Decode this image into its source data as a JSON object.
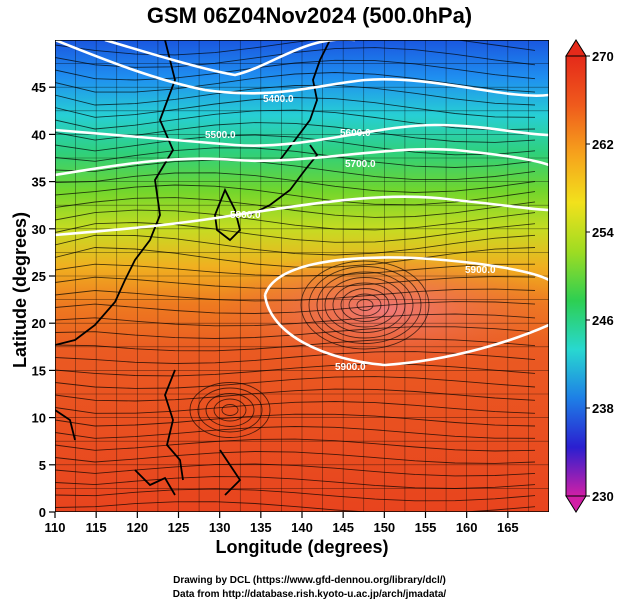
{
  "title": "GSM 06Z04Nov2024 (500.0hPa)",
  "x_axis_label": "Longitude (degrees)",
  "y_axis_label": "Latitude  (degrees)",
  "credits": {
    "line1": "Drawing by DCL (https://www.gfd-dennou.org/library/dcl/)",
    "line2": "Data from http://database.rish.kyoto-u.ac.jp/arch/jmadata/"
  },
  "chart_data": {
    "type": "heatmap",
    "xlim": [
      110,
      170
    ],
    "ylim": [
      0,
      50
    ],
    "x_ticks": [
      "110",
      "115",
      "120",
      "125",
      "130",
      "135",
      "140",
      "145",
      "150",
      "155",
      "160",
      "165"
    ],
    "y_ticks": [
      "0",
      "5",
      "10",
      "15",
      "20",
      "25",
      "30",
      "35",
      "40",
      "45"
    ],
    "colorbar": {
      "min": 230,
      "max": 270,
      "tick_labels": [
        "270",
        "262",
        "254",
        "246",
        "238",
        "230"
      ],
      "colors": [
        "#d11fa6",
        "#2a1fd0",
        "#1e7fe6",
        "#28d8d0",
        "#2dcf52",
        "#9fdc22",
        "#f2e11c",
        "#f6a21c",
        "#ef5a1c",
        "#e52a1a"
      ]
    },
    "contour_labels": [
      "5400.0",
      "5500.0",
      "5600.0",
      "5700.0",
      "5800.0",
      "5900.0",
      "5900.0"
    ]
  }
}
